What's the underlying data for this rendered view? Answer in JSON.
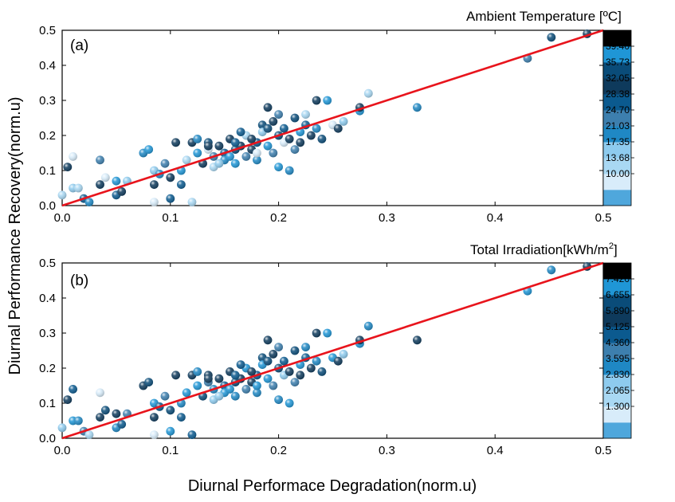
{
  "shared": {
    "xlabel": "Diurnal Performace Degradation(norm.u)",
    "ylabel": "Diurnal Performance Recovery(norm.u)"
  },
  "chart_data": [
    {
      "type": "scatter",
      "panel_label": "(a)",
      "colorbar_title": "Ambient Temperature [ºC]",
      "colorbar_ticks": [
        "39.40",
        "35.73",
        "32.05",
        "28.38",
        "24.70",
        "21.03",
        "17.35",
        "13.68",
        "10.00"
      ],
      "colorbar_colors": [
        "#4fa7dc",
        "#d8ecfa",
        "#a9d8f3",
        "#8ecbee",
        "#1f88c4",
        "#3d7fae",
        "#0b5a8f",
        "#0e3a5c",
        "#0a4c79",
        "#1f96d6",
        "#000000"
      ],
      "xlim": [
        0,
        0.5
      ],
      "ylim": [
        0,
        0.5
      ],
      "xticks": [
        "0.0",
        "0.1",
        "0.2",
        "0.3",
        "0.4",
        "0.5"
      ],
      "yticks": [
        "0.0",
        "0.1",
        "0.2",
        "0.3",
        "0.4",
        "0.5"
      ],
      "fit_line": {
        "x": [
          0,
          0.5
        ],
        "y": [
          0,
          0.5
        ],
        "color": "#e8141c"
      },
      "points": [
        [
          0.0,
          0.03
        ],
        [
          0.005,
          0.11
        ],
        [
          0.01,
          0.14
        ],
        [
          0.01,
          0.05
        ],
        [
          0.015,
          0.05
        ],
        [
          0.02,
          0.02
        ],
        [
          0.025,
          0.01
        ],
        [
          0.035,
          0.13
        ],
        [
          0.035,
          0.06
        ],
        [
          0.04,
          0.08
        ],
        [
          0.05,
          0.03
        ],
        [
          0.05,
          0.07
        ],
        [
          0.055,
          0.04
        ],
        [
          0.06,
          0.07
        ],
        [
          0.075,
          0.15
        ],
        [
          0.08,
          0.16
        ],
        [
          0.085,
          0.01
        ],
        [
          0.085,
          0.1
        ],
        [
          0.085,
          0.06
        ],
        [
          0.09,
          0.09
        ],
        [
          0.095,
          0.12
        ],
        [
          0.1,
          0.02
        ],
        [
          0.1,
          0.08
        ],
        [
          0.105,
          0.18
        ],
        [
          0.11,
          0.06
        ],
        [
          0.11,
          0.1
        ],
        [
          0.115,
          0.13
        ],
        [
          0.12,
          0.01
        ],
        [
          0.12,
          0.18
        ],
        [
          0.125,
          0.15
        ],
        [
          0.13,
          0.12
        ],
        [
          0.135,
          0.16
        ],
        [
          0.135,
          0.18
        ],
        [
          0.14,
          0.14
        ],
        [
          0.14,
          0.11
        ],
        [
          0.145,
          0.17
        ],
        [
          0.15,
          0.15
        ],
        [
          0.15,
          0.13
        ],
        [
          0.155,
          0.19
        ],
        [
          0.16,
          0.16
        ],
        [
          0.16,
          0.12
        ],
        [
          0.165,
          0.17
        ],
        [
          0.17,
          0.14
        ],
        [
          0.17,
          0.2
        ],
        [
          0.175,
          0.16
        ],
        [
          0.18,
          0.18
        ],
        [
          0.18,
          0.13
        ],
        [
          0.185,
          0.23
        ],
        [
          0.185,
          0.21
        ],
        [
          0.19,
          0.28
        ],
        [
          0.19,
          0.17
        ],
        [
          0.195,
          0.15
        ],
        [
          0.195,
          0.24
        ],
        [
          0.2,
          0.2
        ],
        [
          0.2,
          0.11
        ],
        [
          0.205,
          0.18
        ],
        [
          0.205,
          0.22
        ],
        [
          0.21,
          0.1
        ],
        [
          0.21,
          0.19
        ],
        [
          0.215,
          0.25
        ],
        [
          0.215,
          0.16
        ],
        [
          0.22,
          0.21
        ],
        [
          0.22,
          0.18
        ],
        [
          0.225,
          0.26
        ],
        [
          0.225,
          0.23
        ],
        [
          0.23,
          0.2
        ],
        [
          0.235,
          0.22
        ],
        [
          0.235,
          0.3
        ],
        [
          0.24,
          0.19
        ],
        [
          0.245,
          0.3
        ],
        [
          0.25,
          0.23
        ],
        [
          0.255,
          0.22
        ],
        [
          0.26,
          0.24
        ],
        [
          0.275,
          0.27
        ],
        [
          0.275,
          0.28
        ],
        [
          0.283,
          0.32
        ],
        [
          0.328,
          0.28
        ],
        [
          0.43,
          0.42
        ],
        [
          0.452,
          0.48
        ],
        [
          0.485,
          0.49
        ],
        [
          0.165,
          0.21
        ],
        [
          0.155,
          0.14
        ],
        [
          0.145,
          0.12
        ],
        [
          0.175,
          0.19
        ],
        [
          0.2,
          0.26
        ],
        [
          0.19,
          0.22
        ],
        [
          0.125,
          0.19
        ],
        [
          0.135,
          0.17
        ],
        [
          0.18,
          0.15
        ],
        [
          0.16,
          0.18
        ]
      ],
      "point_colors": [
        "#a9d8f3",
        "#0e3a5c",
        "#d8ecfa",
        "#8ecbee",
        "#a9d8f3",
        "#0b5a8f",
        "#1f88c4",
        "#3d7fae",
        "#0e3a5c",
        "#d8ecfa",
        "#0b5a8f",
        "#1f96d6",
        "#0e3a5c",
        "#8ecbee",
        "#1f88c4",
        "#1f96d6",
        "#d8ecfa",
        "#8ecbee",
        "#0e3a5c",
        "#1f88c4",
        "#3d7fae",
        "#0b5a8f",
        "#0e3a5c",
        "#0e3a5c",
        "#0b5a8f",
        "#1f96d6",
        "#a9d8f3",
        "#a9d8f3",
        "#0e3a5c",
        "#1f96d6",
        "#0e3a5c",
        "#d8ecfa",
        "#0a4c79",
        "#3d7fae",
        "#a9d8f3",
        "#0e3a5c",
        "#0b5a8f",
        "#1f88c4",
        "#0e3a5c",
        "#0a4c79",
        "#1f96d6",
        "#0e3a5c",
        "#3d7fae",
        "#a9d8f3",
        "#0e3a5c",
        "#0b5a8f",
        "#1f88c4",
        "#0a4c79",
        "#8ecbee",
        "#0e3a5c",
        "#1f96d6",
        "#3d7fae",
        "#0e3a5c",
        "#0a4c79",
        "#1f96d6",
        "#d8ecfa",
        "#0b5a8f",
        "#1f88c4",
        "#0e3a5c",
        "#0a4c79",
        "#3d7fae",
        "#1f96d6",
        "#0e3a5c",
        "#a9d8f3",
        "#0b5a8f",
        "#0e3a5c",
        "#1f88c4",
        "#0e3a5c",
        "#0a4c79",
        "#1f96d6",
        "#d8ecfa",
        "#0e3a5c",
        "#8ecbee",
        "#1f96d6",
        "#0e3a5c",
        "#a9d8f3",
        "#1f88c4",
        "#3d7fae",
        "#0a4c79",
        "#0e3a5c",
        "#0b5a8f",
        "#1f96d6",
        "#8ecbee",
        "#0e3a5c",
        "#3d7fae",
        "#0a4c79",
        "#1f88c4",
        "#0e3a5c",
        "#d8ecfa",
        "#0b5a8f"
      ]
    },
    {
      "type": "scatter",
      "panel_label": "(b)",
      "colorbar_title": "Total Irradiation[kWh/m",
      "colorbar_title_sup": "2",
      "colorbar_title_end": "]",
      "colorbar_ticks": [
        "7.420",
        "6.655",
        "5.890",
        "5.125",
        "4.360",
        "3.595",
        "2.830",
        "2.065",
        "1.300"
      ],
      "colorbar_colors": [
        "#4fa7dc",
        "#d8ecfa",
        "#a9d8f3",
        "#8ecbee",
        "#1f88c4",
        "#3d7fae",
        "#0b5a8f",
        "#0e3a5c",
        "#0a4c79",
        "#1f96d6",
        "#000000"
      ],
      "xlim": [
        0,
        0.5
      ],
      "ylim": [
        0,
        0.5
      ],
      "xticks": [
        "0.0",
        "0.1",
        "0.2",
        "0.3",
        "0.4",
        "0.5"
      ],
      "yticks": [
        "0.0",
        "0.1",
        "0.2",
        "0.3",
        "0.4",
        "0.5"
      ],
      "fit_line": {
        "x": [
          0,
          0.5
        ],
        "y": [
          0,
          0.5
        ],
        "color": "#e8141c"
      },
      "points": [
        [
          0.0,
          0.03
        ],
        [
          0.005,
          0.11
        ],
        [
          0.01,
          0.14
        ],
        [
          0.01,
          0.05
        ],
        [
          0.015,
          0.05
        ],
        [
          0.02,
          0.02
        ],
        [
          0.025,
          0.01
        ],
        [
          0.035,
          0.13
        ],
        [
          0.035,
          0.06
        ],
        [
          0.04,
          0.08
        ],
        [
          0.05,
          0.03
        ],
        [
          0.05,
          0.07
        ],
        [
          0.055,
          0.04
        ],
        [
          0.06,
          0.07
        ],
        [
          0.075,
          0.15
        ],
        [
          0.08,
          0.16
        ],
        [
          0.085,
          0.01
        ],
        [
          0.085,
          0.1
        ],
        [
          0.085,
          0.06
        ],
        [
          0.09,
          0.09
        ],
        [
          0.095,
          0.12
        ],
        [
          0.1,
          0.02
        ],
        [
          0.1,
          0.08
        ],
        [
          0.105,
          0.18
        ],
        [
          0.11,
          0.06
        ],
        [
          0.11,
          0.1
        ],
        [
          0.115,
          0.13
        ],
        [
          0.12,
          0.01
        ],
        [
          0.12,
          0.18
        ],
        [
          0.125,
          0.15
        ],
        [
          0.13,
          0.12
        ],
        [
          0.135,
          0.16
        ],
        [
          0.135,
          0.18
        ],
        [
          0.14,
          0.14
        ],
        [
          0.14,
          0.11
        ],
        [
          0.145,
          0.17
        ],
        [
          0.15,
          0.15
        ],
        [
          0.15,
          0.13
        ],
        [
          0.155,
          0.19
        ],
        [
          0.16,
          0.16
        ],
        [
          0.16,
          0.12
        ],
        [
          0.165,
          0.17
        ],
        [
          0.17,
          0.14
        ],
        [
          0.17,
          0.2
        ],
        [
          0.175,
          0.16
        ],
        [
          0.18,
          0.18
        ],
        [
          0.18,
          0.13
        ],
        [
          0.185,
          0.23
        ],
        [
          0.185,
          0.21
        ],
        [
          0.19,
          0.28
        ],
        [
          0.19,
          0.17
        ],
        [
          0.195,
          0.15
        ],
        [
          0.195,
          0.24
        ],
        [
          0.2,
          0.2
        ],
        [
          0.2,
          0.11
        ],
        [
          0.205,
          0.18
        ],
        [
          0.205,
          0.22
        ],
        [
          0.21,
          0.1
        ],
        [
          0.21,
          0.19
        ],
        [
          0.215,
          0.25
        ],
        [
          0.215,
          0.16
        ],
        [
          0.22,
          0.21
        ],
        [
          0.22,
          0.18
        ],
        [
          0.225,
          0.26
        ],
        [
          0.225,
          0.23
        ],
        [
          0.23,
          0.2
        ],
        [
          0.235,
          0.22
        ],
        [
          0.235,
          0.3
        ],
        [
          0.24,
          0.19
        ],
        [
          0.245,
          0.3
        ],
        [
          0.25,
          0.23
        ],
        [
          0.255,
          0.22
        ],
        [
          0.26,
          0.24
        ],
        [
          0.275,
          0.27
        ],
        [
          0.275,
          0.28
        ],
        [
          0.283,
          0.32
        ],
        [
          0.328,
          0.28
        ],
        [
          0.43,
          0.42
        ],
        [
          0.452,
          0.48
        ],
        [
          0.485,
          0.49
        ],
        [
          0.165,
          0.21
        ],
        [
          0.155,
          0.14
        ],
        [
          0.145,
          0.12
        ],
        [
          0.175,
          0.19
        ],
        [
          0.2,
          0.26
        ],
        [
          0.19,
          0.22
        ],
        [
          0.125,
          0.19
        ],
        [
          0.135,
          0.17
        ],
        [
          0.18,
          0.15
        ],
        [
          0.16,
          0.18
        ]
      ],
      "point_colors": [
        "#8ecbee",
        "#0e3a5c",
        "#0b5a8f",
        "#1f96d6",
        "#1f88c4",
        "#3d7fae",
        "#a9d8f3",
        "#d8ecfa",
        "#0e3a5c",
        "#0a4c79",
        "#1f88c4",
        "#0e3a5c",
        "#0b5a8f",
        "#3d7fae",
        "#0e3a5c",
        "#0a4c79",
        "#d8ecfa",
        "#1f96d6",
        "#0e3a5c",
        "#0b5a8f",
        "#3d7fae",
        "#1f96d6",
        "#0a4c79",
        "#0e3a5c",
        "#0b5a8f",
        "#1f88c4",
        "#1f96d6",
        "#0b5a8f",
        "#0e3a5c",
        "#1f96d6",
        "#0a4c79",
        "#3d7fae",
        "#0e3a5c",
        "#1f88c4",
        "#8ecbee",
        "#0e3a5c",
        "#0b5a8f",
        "#1f96d6",
        "#0e3a5c",
        "#0a4c79",
        "#1f88c4",
        "#0e3a5c",
        "#3d7fae",
        "#1f96d6",
        "#0e3a5c",
        "#0b5a8f",
        "#1f88c4",
        "#0a4c79",
        "#1f96d6",
        "#0e3a5c",
        "#1f96d6",
        "#3d7fae",
        "#0e3a5c",
        "#0a4c79",
        "#1f88c4",
        "#8ecbee",
        "#0b5a8f",
        "#1f96d6",
        "#0e3a5c",
        "#0a4c79",
        "#3d7fae",
        "#1f96d6",
        "#0e3a5c",
        "#1f88c4",
        "#0b5a8f",
        "#0e3a5c",
        "#1f88c4",
        "#0e3a5c",
        "#0a4c79",
        "#1f96d6",
        "#1f96d6",
        "#0e3a5c",
        "#8ecbee",
        "#1f96d6",
        "#0e3a5c",
        "#1f88c4",
        "#0e3a5c",
        "#1f96d6",
        "#1f88c4",
        "#0e3a5c",
        "#0b5a8f",
        "#1f96d6",
        "#8ecbee",
        "#0e3a5c",
        "#3d7fae",
        "#0a4c79",
        "#1f88c4",
        "#0e3a5c",
        "#1f96d6",
        "#0b5a8f"
      ]
    }
  ]
}
